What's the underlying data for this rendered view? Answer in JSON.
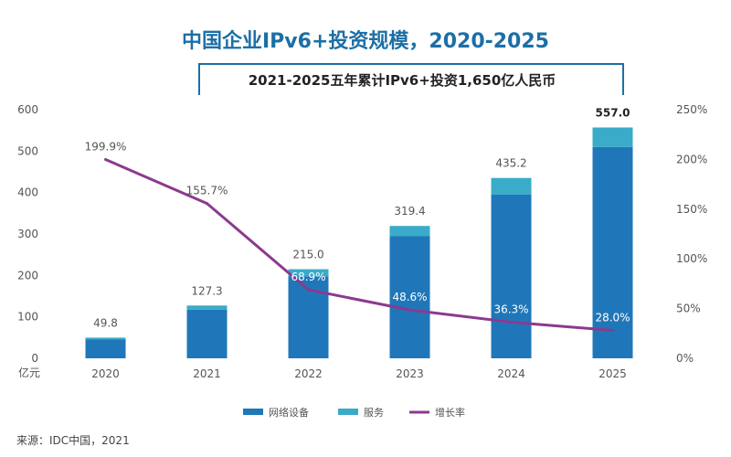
{
  "chart_data": {
    "type": "bar",
    "title": "中国企业IPv6+投资规模，2020-2025",
    "subtitle": "2021-2025五年累计IPv6+投资1,650亿人民币",
    "y_unit_label": "亿元",
    "source": "来源：IDC中国，2021",
    "categories": [
      "2020",
      "2021",
      "2022",
      "2023",
      "2024",
      "2025"
    ],
    "series": [
      {
        "name": "网络设备",
        "values": [
          46.0,
          117.5,
          198.0,
          294.5,
          395.0,
          510.0
        ],
        "color": "#1f77b9"
      },
      {
        "name": "服务",
        "values": [
          3.8,
          9.8,
          17.0,
          24.9,
          40.2,
          47.0
        ],
        "color": "#3aabc8"
      }
    ],
    "totals": [
      49.8,
      127.3,
      215.0,
      319.4,
      435.2,
      557.0
    ],
    "total_labels": [
      "49.8",
      "127.3",
      "215.0",
      "319.4",
      "435.2",
      "557.0"
    ],
    "line_series": {
      "name": "增长率",
      "values": [
        199.9,
        155.7,
        68.9,
        48.6,
        36.3,
        28.0
      ],
      "color": "#8b3a8f"
    },
    "line_labels": [
      "199.9%",
      "155.7%",
      "68.9%",
      "48.6%",
      "36.3%",
      "28.0%"
    ],
    "y_left": {
      "min": 0,
      "max": 600,
      "ticks": [
        "0",
        "100",
        "200",
        "300",
        "400",
        "500",
        "600"
      ]
    },
    "y_right": {
      "min": 0,
      "max": 250,
      "ticks": [
        "0%",
        "50%",
        "100%",
        "150%",
        "200%",
        "250%"
      ]
    },
    "legend_position": "bottom",
    "grid": false
  }
}
